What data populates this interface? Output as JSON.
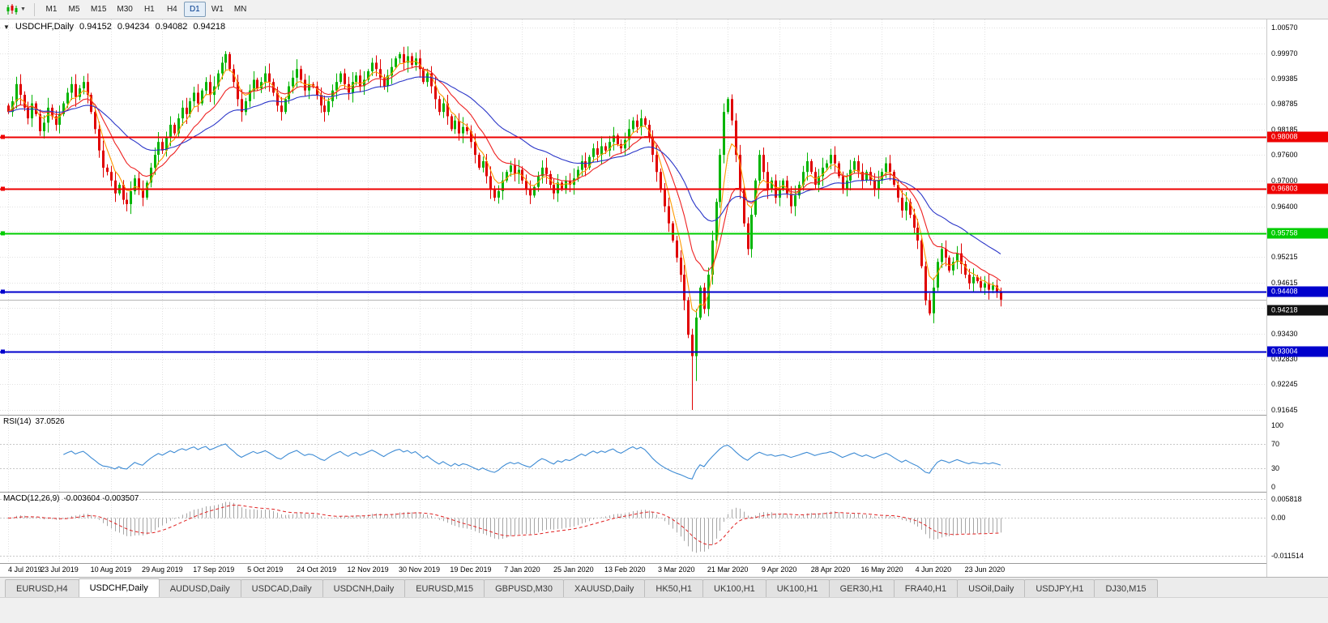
{
  "toolbar": {
    "timeframes": [
      "M1",
      "M5",
      "M15",
      "M30",
      "H1",
      "H4",
      "D1",
      "W1",
      "MN"
    ],
    "active": "D1"
  },
  "chart": {
    "header": {
      "symbol": "USDCHF,Daily",
      "open": "0.94152",
      "high": "0.94234",
      "low": "0.94082",
      "close": "0.94218"
    },
    "price_min": 0.91645,
    "price_max": 1.0057,
    "axis_labels": [
      "1.00570",
      "0.99970",
      "0.99385",
      "0.98785",
      "0.98185",
      "0.97600",
      "0.97000",
      "0.96400",
      "0.95815",
      "0.95215",
      "0.94615",
      "0.94030",
      "0.93430",
      "0.92830",
      "0.92245",
      "0.91645"
    ],
    "hlines": [
      {
        "value": 0.98008,
        "label": "0.98008",
        "color": "#ee0000"
      },
      {
        "value": 0.96803,
        "label": "0.96803",
        "color": "#ee0000"
      },
      {
        "value": 0.95758,
        "label": "0.95758",
        "color": "#00cc00"
      },
      {
        "value": 0.94408,
        "label": "0.94408",
        "color": "#0000cc"
      },
      {
        "value": 0.93004,
        "label": "0.93004",
        "color": "#0000cc"
      }
    ],
    "bid_line": {
      "value": 0.94218,
      "label": "0.94218",
      "color": "#111111"
    },
    "dates": [
      "4 Jul 2019",
      "23 Jul 2019",
      "10 Aug 2019",
      "29 Aug 2019",
      "17 Sep 2019",
      "5 Oct 2019",
      "24 Oct 2019",
      "12 Nov 2019",
      "30 Nov 2019",
      "19 Dec 2019",
      "7 Jan 2020",
      "25 Jan 2020",
      "13 Feb 2020",
      "3 Mar 2020",
      "21 Mar 2020",
      "9 Apr 2020",
      "28 Apr 2020",
      "16 May 2020",
      "4 Jun 2020",
      "23 Jun 2020"
    ]
  },
  "rsi": {
    "name": "RSI(14)",
    "value": "37.0526",
    "axis_labels": [
      "100",
      "70",
      "30",
      "0"
    ],
    "level_lines": [
      70,
      30
    ],
    "color": "#3d8bd4"
  },
  "macd": {
    "name": "MACD(12,26,9)",
    "values": "-0.003604 -0.003507",
    "axis_labels": [
      "0.005818",
      "0.00",
      "-0.011514"
    ],
    "hist_color": "#a6a6a6",
    "signal_color": "#e02020"
  },
  "tabs": {
    "active_index": 1,
    "items": [
      "EURUSD,H4",
      "USDCHF,Daily",
      "AUDUSD,Daily",
      "USDCAD,Daily",
      "USDCNH,Daily",
      "EURUSD,M15",
      "GBPUSD,M30",
      "XAUUSD,Daily",
      "HK50,H1",
      "UK100,H1",
      "UK100,H1",
      "GER30,H1",
      "FRA40,H1",
      "USOil,Daily",
      "USDJPY,H1",
      "DJ30,M15"
    ],
    "note": ""
  },
  "chart_data": {
    "type": "candlestick",
    "symbol": "USDCHF",
    "timeframe": "Daily",
    "title": "USDCHF,Daily",
    "y_range": [
      0.91645,
      1.0057
    ],
    "x_tick_labels": [
      "4 Jul 2019",
      "23 Jul 2019",
      "10 Aug 2019",
      "29 Aug 2019",
      "17 Sep 2019",
      "5 Oct 2019",
      "24 Oct 2019",
      "12 Nov 2019",
      "30 Nov 2019",
      "19 Dec 2019",
      "7 Jan 2020",
      "25 Jan 2020",
      "13 Feb 2020",
      "3 Mar 2020",
      "21 Mar 2020",
      "9 Apr 2020",
      "28 Apr 2020",
      "16 May 2020",
      "4 Jun 2020",
      "23 Jun 2020"
    ],
    "bars_per_tick": 13,
    "up_color": "#00b400",
    "down_color": "#e00000",
    "closes": [
      0.986,
      0.9885,
      0.9925,
      0.99,
      0.987,
      0.9845,
      0.988,
      0.9855,
      0.9815,
      0.9835,
      0.987,
      0.985,
      0.983,
      0.9855,
      0.988,
      0.9905,
      0.9925,
      0.9895,
      0.9915,
      0.993,
      0.99,
      0.986,
      0.982,
      0.977,
      0.973,
      0.972,
      0.97,
      0.967,
      0.969,
      0.9655,
      0.9645,
      0.9675,
      0.9705,
      0.968,
      0.966,
      0.9695,
      0.973,
      0.976,
      0.979,
      0.977,
      0.98,
      0.983,
      0.981,
      0.9845,
      0.987,
      0.9855,
      0.9885,
      0.9905,
      0.988,
      0.991,
      0.993,
      0.99,
      0.992,
      0.995,
      0.9975,
      0.9995,
      0.996,
      0.993,
      0.989,
      0.986,
      0.9885,
      0.991,
      0.9935,
      0.9915,
      0.993,
      0.995,
      0.993,
      0.9905,
      0.9875,
      0.986,
      0.989,
      0.992,
      0.994,
      0.996,
      0.9935,
      0.991,
      0.9925,
      0.992,
      0.99,
      0.9875,
      0.986,
      0.9885,
      0.991,
      0.993,
      0.995,
      0.9925,
      0.9905,
      0.993,
      0.9945,
      0.992,
      0.9935,
      0.9955,
      0.9975,
      0.996,
      0.994,
      0.992,
      0.9945,
      0.9965,
      0.9985,
      0.9995,
      0.9975,
      0.999,
      0.997,
      0.9985,
      0.996,
      0.993,
      0.995,
      0.992,
      0.989,
      0.986,
      0.988,
      0.985,
      0.982,
      0.984,
      0.981,
      0.9825,
      0.9815,
      0.979,
      0.976,
      0.973,
      0.9745,
      0.971,
      0.968,
      0.966,
      0.9675,
      0.97,
      0.972,
      0.9735,
      0.9715,
      0.9725,
      0.97,
      0.968,
      0.9665,
      0.9685,
      0.971,
      0.973,
      0.9715,
      0.969,
      0.967,
      0.9695,
      0.968,
      0.97,
      0.969,
      0.9705,
      0.9725,
      0.9745,
      0.973,
      0.9755,
      0.9775,
      0.976,
      0.978,
      0.977,
      0.979,
      0.9805,
      0.9785,
      0.9775,
      0.9795,
      0.982,
      0.984,
      0.9825,
      0.9845,
      0.983,
      0.98,
      0.976,
      0.972,
      0.968,
      0.964,
      0.96,
      0.956,
      0.952,
      0.948,
      0.942,
      0.934,
      0.929,
      0.938,
      0.945,
      0.94,
      0.948,
      0.956,
      0.965,
      0.976,
      0.986,
      0.989,
      0.984,
      0.976,
      0.968,
      0.96,
      0.954,
      0.962,
      0.97,
      0.976,
      0.972,
      0.968,
      0.97,
      0.966,
      0.968,
      0.97,
      0.967,
      0.964,
      0.9665,
      0.969,
      0.972,
      0.9745,
      0.972,
      0.969,
      0.971,
      0.973,
      0.974,
      0.976,
      0.974,
      0.971,
      0.968,
      0.97,
      0.9725,
      0.9745,
      0.972,
      0.97,
      0.972,
      0.97,
      0.968,
      0.97,
      0.972,
      0.974,
      0.972,
      0.969,
      0.966,
      0.963,
      0.965,
      0.962,
      0.959,
      0.956,
      0.95,
      0.942,
      0.939,
      0.945,
      0.951,
      0.954,
      0.952,
      0.949,
      0.951,
      0.953,
      0.9505,
      0.948,
      0.946,
      0.9475,
      0.9465,
      0.945,
      0.946,
      0.9445,
      0.9455,
      0.944,
      0.9422
    ],
    "wick_overrides": {
      "55": {
        "high": 1.0002
      },
      "99": {
        "high": 1.0
      },
      "173": {
        "low": 0.91645
      },
      "174": {
        "low": 0.9232
      },
      "233": {
        "low": 0.9385
      },
      "251": {
        "low": 0.9406,
        "high": 0.945
      }
    },
    "indicators": {
      "moving_averages": [
        {
          "period": 5,
          "color": "#ff9900"
        },
        {
          "period": 13,
          "color": "#ee2222"
        },
        {
          "period": 34,
          "color": "#2a35c8"
        }
      ],
      "rsi": {
        "period": 14,
        "current": 37.0526,
        "levels": [
          70,
          30
        ],
        "color": "#3d8bd4"
      },
      "macd": {
        "fast": 12,
        "slow": 26,
        "signal": 9,
        "current_main": -0.003604,
        "current_signal": -0.003507
      }
    }
  }
}
